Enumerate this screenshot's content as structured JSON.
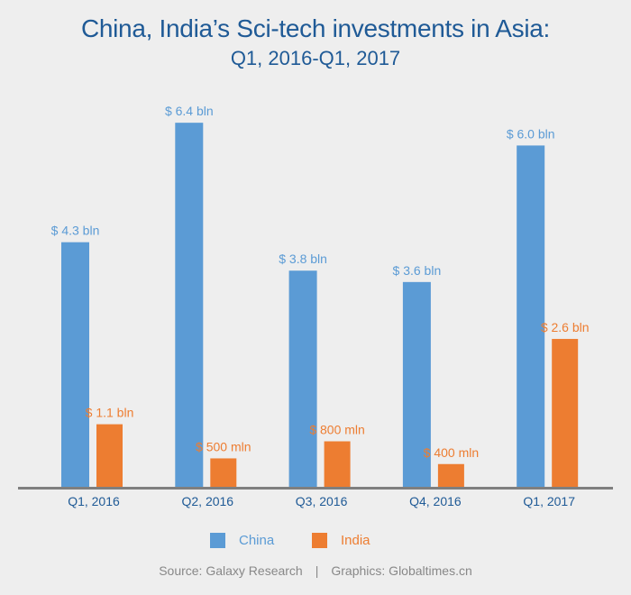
{
  "chart_data": {
    "type": "bar",
    "title": "China, India’s Sci-tech investments in Asia:",
    "subtitle": "Q1, 2016-Q1, 2017",
    "xlabel": "",
    "ylabel": "",
    "units": "USD billion",
    "ylim": [
      0,
      7
    ],
    "grid": false,
    "legend_position": "bottom",
    "categories": [
      "Q1, 2016",
      "Q2, 2016",
      "Q3, 2016",
      "Q4, 2016",
      "Q1, 2017"
    ],
    "series": [
      {
        "name": "China",
        "color": "#5b9bd5",
        "values": [
          4.3,
          6.4,
          3.8,
          3.6,
          6.0
        ],
        "labels": [
          "$ 4.3 bln",
          "$ 6.4 bln",
          "$ 3.8 bln",
          "$ 3.6 bln",
          "$ 6.0 bln"
        ]
      },
      {
        "name": "India",
        "color": "#ed7d31",
        "values": [
          1.1,
          0.5,
          0.8,
          0.4,
          2.6
        ],
        "labels": [
          "$ 1.1 bln",
          "$ 500 mln",
          "$ 800 mln",
          "$ 400 mln",
          "$ 2.6 bln"
        ]
      }
    ]
  },
  "colors": {
    "title": "#1f5a96",
    "tick_label": "#1f5a96",
    "axis": "#7f7f7f",
    "source": "#888888"
  },
  "source": {
    "left": "Source: Galaxy Research",
    "separator": "|",
    "right": "Graphics: Globaltimes.cn"
  }
}
